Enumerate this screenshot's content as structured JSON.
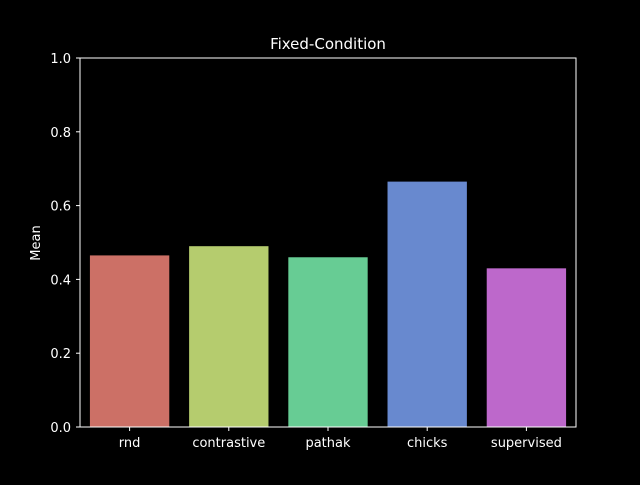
{
  "chart_data": {
    "type": "bar",
    "title": "Fixed-Condition",
    "xlabel": "",
    "ylabel": "Mean",
    "categories": [
      "rnd",
      "contrastive",
      "pathak",
      "chicks",
      "supervised"
    ],
    "values": [
      0.465,
      0.49,
      0.46,
      0.665,
      0.43
    ],
    "colors": [
      "#cc7066",
      "#b5cc6e",
      "#67cc94",
      "#6889cf",
      "#bd68cb"
    ],
    "ylim": [
      0,
      1.0
    ],
    "yticks": [
      "0.0",
      "0.2",
      "0.4",
      "0.6",
      "0.8",
      "1.0"
    ],
    "grid": false,
    "background": "#000000",
    "foreground": "#ffffff"
  }
}
